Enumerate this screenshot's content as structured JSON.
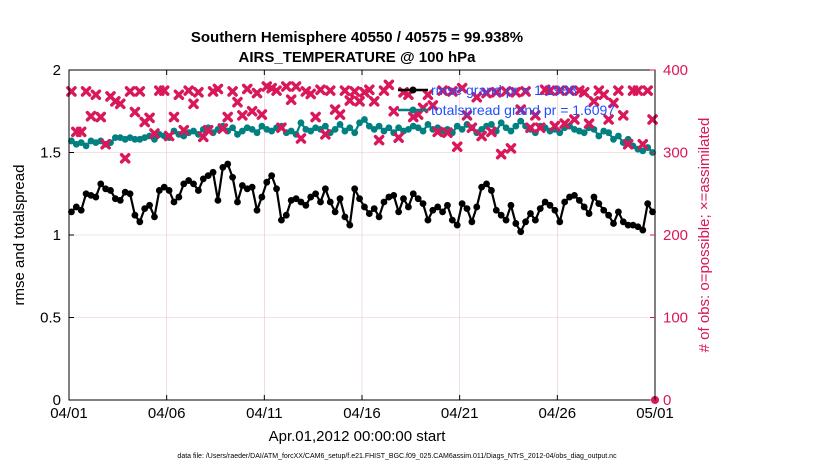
{
  "chart_data": {
    "type": "line",
    "title_line1": "Southern Hemisphere 40550 / 40575 = 99.938%",
    "title_line2": "AIRS_TEMPERATURE @ 100 hPa",
    "xlabel": "Apr.01,2012 00:00:00 start",
    "ylabel_left": "rmse and totalspread",
    "ylabel_right": "# of obs: o=possible; ×=assimilated",
    "footer": "data file: /Users/raeder/DAI/ATM_forcXX/CAM6_setup/f.e21.FHIST_BGC.f09_025.CAM6assim.011/Diags_NTrS_2012-04/obs_diag_output.nc",
    "xlim": [
      0,
      30
    ],
    "ylim_left": [
      0,
      2
    ],
    "ylim_right": [
      0,
      400
    ],
    "x_ticks": [
      {
        "value": 0,
        "label": "04/01"
      },
      {
        "value": 5,
        "label": "04/06"
      },
      {
        "value": 10,
        "label": "04/11"
      },
      {
        "value": 15,
        "label": "04/16"
      },
      {
        "value": 20,
        "label": "04/21"
      },
      {
        "value": 25,
        "label": "04/26"
      },
      {
        "value": 30,
        "label": "05/01"
      }
    ],
    "y_ticks_left": [
      {
        "value": 0,
        "label": "0"
      },
      {
        "value": 0.5,
        "label": "0.5"
      },
      {
        "value": 1,
        "label": "1"
      },
      {
        "value": 1.5,
        "label": "1.5"
      },
      {
        "value": 2,
        "label": "2"
      }
    ],
    "y_ticks_right": [
      {
        "value": 0,
        "label": "0"
      },
      {
        "value": 100,
        "label": "100"
      },
      {
        "value": 200,
        "label": "200"
      },
      {
        "value": 300,
        "label": "300"
      },
      {
        "value": 400,
        "label": "400"
      }
    ],
    "grid": true,
    "legend_position": "top-right",
    "colors": {
      "rmse": "#000000",
      "spread": "#008080",
      "obs": "#d9175a",
      "legend_text": "#1f4fff",
      "grid": "#e8c6c6"
    },
    "series": [
      {
        "name": "rmse grand pr = 1.1988",
        "axis": "left",
        "x_start": 0.125,
        "x_step": 0.25,
        "values": [
          1.14,
          1.17,
          1.15,
          1.25,
          1.24,
          1.23,
          1.31,
          1.28,
          1.27,
          1.22,
          1.21,
          1.26,
          1.25,
          1.12,
          1.08,
          1.16,
          1.18,
          1.11,
          1.27,
          1.29,
          1.27,
          1.2,
          1.23,
          1.31,
          1.33,
          1.31,
          1.27,
          1.34,
          1.36,
          1.38,
          1.21,
          1.41,
          1.43,
          1.35,
          1.2,
          1.3,
          1.28,
          1.29,
          1.15,
          1.23,
          1.32,
          1.36,
          1.28,
          1.09,
          1.12,
          1.21,
          1.22,
          1.2,
          1.18,
          1.23,
          1.25,
          1.2,
          1.28,
          1.2,
          1.14,
          1.22,
          1.11,
          1.06,
          1.28,
          1.22,
          1.17,
          1.13,
          1.16,
          1.11,
          1.2,
          1.23,
          1.24,
          1.14,
          1.22,
          1.17,
          1.25,
          1.22,
          1.19,
          1.09,
          1.15,
          1.17,
          1.14,
          1.18,
          1.09,
          1.06,
          1.19,
          1.16,
          1.08,
          1.17,
          1.29,
          1.31,
          1.27,
          1.15,
          1.12,
          1.09,
          1.18,
          1.07,
          1.02,
          1.08,
          1.13,
          1.09,
          1.16,
          1.2,
          1.18,
          1.15,
          1.08,
          1.2,
          1.23,
          1.24,
          1.21,
          1.17,
          1.13,
          1.23,
          1.19,
          1.15,
          1.12,
          1.07,
          1.14,
          1.08,
          1.06,
          1.06,
          1.05,
          1.03,
          1.19,
          1.14
        ]
      },
      {
        "name": "totalspread grand pr = 1.6097",
        "axis": "left",
        "x_start": 0.125,
        "x_step": 0.25,
        "values": [
          1.57,
          1.55,
          1.56,
          1.54,
          1.57,
          1.56,
          1.57,
          1.55,
          1.56,
          1.59,
          1.59,
          1.58,
          1.59,
          1.58,
          1.58,
          1.59,
          1.6,
          1.58,
          1.61,
          1.6,
          1.59,
          1.63,
          1.61,
          1.6,
          1.62,
          1.63,
          1.61,
          1.64,
          1.65,
          1.62,
          1.64,
          1.66,
          1.63,
          1.65,
          1.61,
          1.63,
          1.65,
          1.64,
          1.62,
          1.66,
          1.64,
          1.63,
          1.65,
          1.66,
          1.62,
          1.63,
          1.61,
          1.68,
          1.64,
          1.63,
          1.65,
          1.64,
          1.66,
          1.62,
          1.64,
          1.67,
          1.63,
          1.65,
          1.62,
          1.68,
          1.7,
          1.66,
          1.64,
          1.66,
          1.63,
          1.65,
          1.62,
          1.65,
          1.63,
          1.64,
          1.66,
          1.65,
          1.63,
          1.67,
          1.64,
          1.65,
          1.63,
          1.64,
          1.62,
          1.66,
          1.64,
          1.67,
          1.65,
          1.62,
          1.64,
          1.66,
          1.67,
          1.63,
          1.68,
          1.65,
          1.63,
          1.66,
          1.69,
          1.66,
          1.64,
          1.62,
          1.66,
          1.65,
          1.63,
          1.64,
          1.62,
          1.65,
          1.66,
          1.64,
          1.63,
          1.62,
          1.65,
          1.64,
          1.6,
          1.63,
          1.62,
          1.58,
          1.6,
          1.56,
          1.58,
          1.54,
          1.52,
          1.51,
          1.53,
          1.5
        ]
      },
      {
        "name": "possible",
        "axis": "right",
        "marker": "o",
        "points": [
          [
            30,
            0
          ]
        ]
      },
      {
        "name": "assimilated",
        "axis": "right",
        "marker": "x",
        "x_start": 0.125,
        "x_step": 0.25,
        "values": [
          374,
          325,
          325,
          374,
          344,
          370,
          343,
          310,
          368,
          362,
          359,
          293,
          374,
          349,
          374,
          337,
          342,
          323,
          375,
          375,
          320,
          343,
          370,
          327,
          375,
          359,
          373,
          319,
          327,
          374,
          377,
          329,
          343,
          374,
          361,
          345,
          377,
          350,
          372,
          346,
          380,
          378,
          375,
          330,
          380,
          364,
          380,
          317,
          374,
          371,
          343,
          376,
          322,
          375,
          352,
          346,
          375,
          363,
          374,
          362,
          373,
          376,
          362,
          315,
          375,
          382,
          350,
          318,
          373,
          370,
          343,
          346,
          354,
          370,
          357,
          325,
          375,
          324,
          374,
          307,
          378,
          345,
          330,
          367,
          320,
          372,
          325,
          373,
          298,
          374,
          305,
          373,
          352,
          374,
          330,
          345,
          330,
          376,
          375,
          332,
          375,
          335,
          375,
          340,
          375,
          373,
          335,
          362,
          375,
          370,
          340,
          360,
          375,
          345,
          310,
          375,
          375,
          310,
          375,
          340
        ]
      }
    ]
  }
}
